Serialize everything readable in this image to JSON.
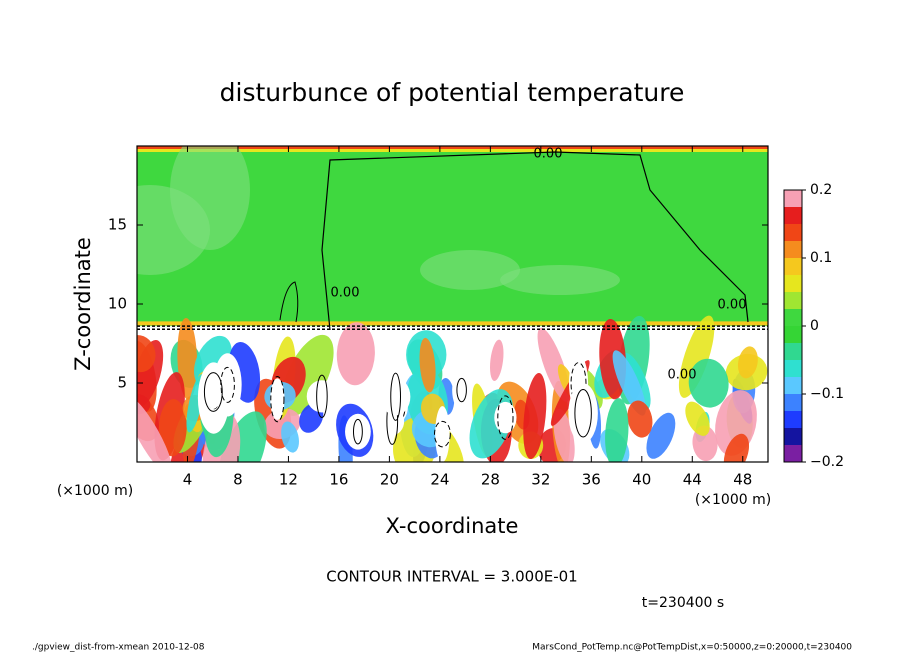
{
  "chart_data": {
    "type": "contour",
    "title": "disturbunce of potential temperature",
    "xlabel": "X-coordinate",
    "ylabel": "Z-coordinate",
    "x_unit": "(×1000 m)",
    "y_unit": "(×1000 m)",
    "xlim": [
      0,
      50
    ],
    "xticks": [
      4,
      8,
      12,
      16,
      20,
      24,
      28,
      32,
      36,
      40,
      44,
      48
    ],
    "ylim": [
      0,
      20
    ],
    "yticks": [
      5,
      10,
      15
    ],
    "colorbar": {
      "levels": [
        -0.2,
        -0.175,
        -0.15,
        -0.125,
        -0.1,
        -0.075,
        -0.05,
        -0.025,
        0,
        0.025,
        0.05,
        0.075,
        0.1,
        0.125,
        0.15,
        0.175,
        0.2
      ],
      "colors": [
        "#7a1fa2",
        "#1414a0",
        "#1e3cff",
        "#3c82ff",
        "#5ac8ff",
        "#2fe0d0",
        "#30d890",
        "#35d535",
        "#3fd83f",
        "#a0e632",
        "#e6e61e",
        "#f5c81e",
        "#f58c1e",
        "#f04616",
        "#e61e1e",
        "#f7a0b4"
      ],
      "ticks": [
        {
          "value": -0.2,
          "label": "−0.2"
        },
        {
          "value": -0.1,
          "label": "−0.1"
        },
        0,
        0.1,
        0.2
      ]
    },
    "contour_labels": [
      "0.00",
      "0.00",
      "0.00",
      "0.00"
    ],
    "contour_interval": "CONTOUR INTERVAL = 3.000E-01",
    "time_label": "t=230400 s",
    "footer_left": "./gpview_dist-from-xmean  2010-12-08",
    "footer_right": "MarsCond_PotTemp.nc@PotTempDist,x=0:50000,z=0:20000,t=230400"
  }
}
